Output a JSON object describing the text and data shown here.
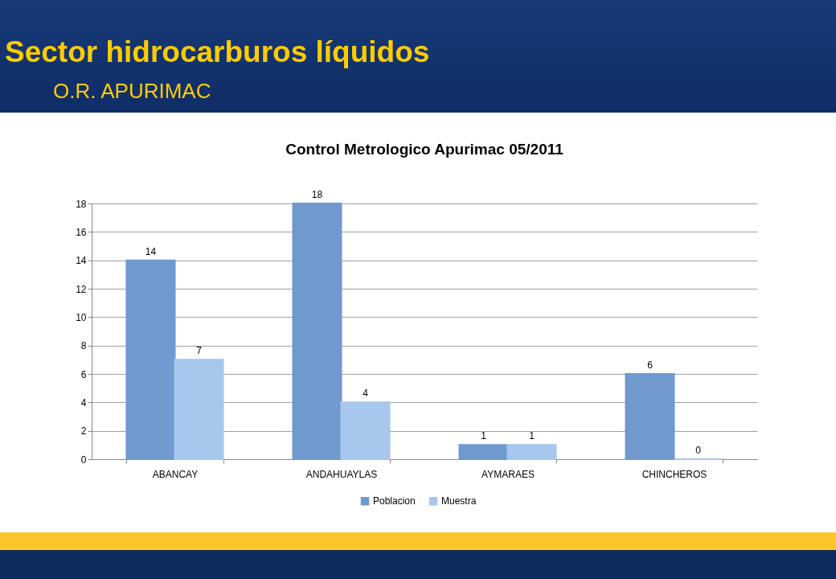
{
  "chart_data": {
    "type": "bar",
    "title": "Sector hidrocarburos líquidos",
    "subtitle": "O.R. APURIMAC",
    "annotations": [
      "Control Metrologico Apurimac  05/2011"
    ],
    "categories": [
      "ABANCAY",
      "ANDAHUAYLAS",
      "AYMARAES",
      "CHINCHEROS"
    ],
    "series": [
      {
        "name": "Poblacion",
        "color": "#7099cf",
        "values": [
          14,
          18,
          1,
          6
        ]
      },
      {
        "name": "Muestra",
        "color": "#a7c7ec",
        "values": [
          7,
          4,
          1,
          0
        ]
      }
    ],
    "ylim": [
      0,
      18
    ],
    "yticks": [
      0,
      2,
      4,
      6,
      8,
      10,
      12,
      14,
      16,
      18
    ],
    "grid": "y",
    "legend": "bottom",
    "data_labels": true
  }
}
